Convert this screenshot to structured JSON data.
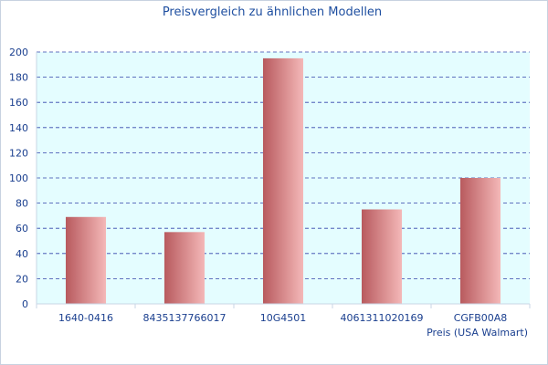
{
  "chart_data": {
    "type": "bar",
    "title": "Preisvergleich zu ähnlichen Modellen",
    "xlabel": "Preis (USA Walmart)",
    "ylabel": "",
    "categories": [
      "1640-0416",
      "8435137766017",
      "10G4501",
      "4061311020169",
      "CGFB00A8"
    ],
    "values": [
      69,
      57,
      195,
      75,
      100
    ],
    "ylim": [
      0,
      200
    ],
    "yticks": [
      0,
      20,
      40,
      60,
      80,
      100,
      120,
      140,
      160,
      180,
      200
    ],
    "grid": true,
    "legend": "none"
  },
  "colors": {
    "plot_background": "#e4fdff",
    "gridline": "#3344aa",
    "bar_dark": "#b85a5e",
    "bar_light": "#f4b8b8",
    "text": "#1a3f8f"
  }
}
